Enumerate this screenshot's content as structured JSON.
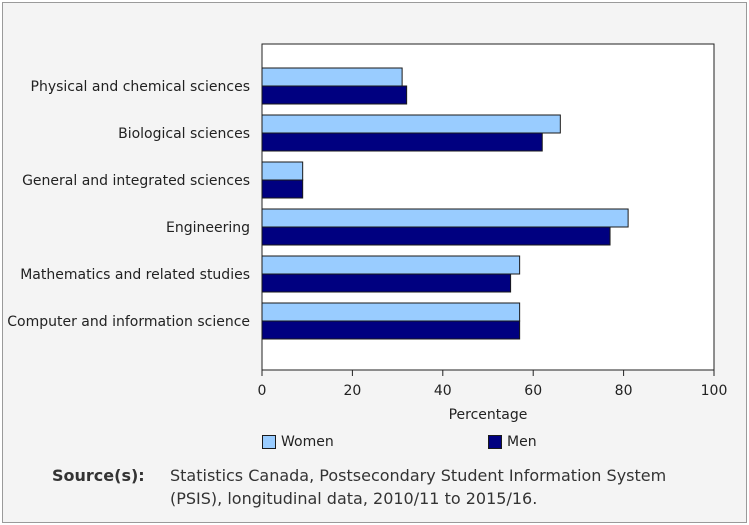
{
  "chart_data": {
    "type": "bar",
    "orientation": "horizontal",
    "categories": [
      "Physical and chemical sciences",
      "Biological sciences",
      "General and integrated sciences",
      "Engineering",
      "Mathematics and related studies",
      "Computer and information science"
    ],
    "series": [
      {
        "name": "Women",
        "color": "#99ccff",
        "values": [
          31,
          66,
          9,
          81,
          57,
          57
        ]
      },
      {
        "name": "Men",
        "color": "#000080",
        "values": [
          32,
          62,
          9,
          77,
          55,
          57
        ]
      }
    ],
    "xlabel": "Percentage",
    "ylabel": "",
    "xlim": [
      0,
      100
    ],
    "xticks": [
      "0",
      "20",
      "40",
      "60",
      "80",
      "100"
    ],
    "grid": false,
    "legend_position": "bottom"
  },
  "source": {
    "label": "Source(s):",
    "line1": "Statistics Canada, Postsecondary Student Information System",
    "line2": "(PSIS), longitudinal data, 2010/11 to 2015/16."
  }
}
